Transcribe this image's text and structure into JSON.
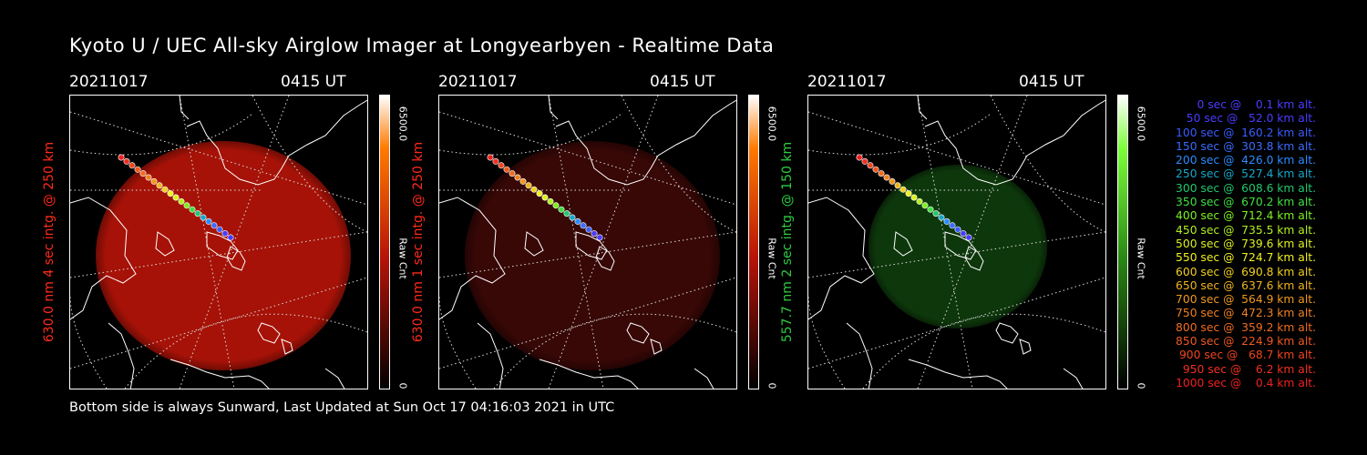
{
  "title": "Kyoto U / UEC All-sky Airglow Imager at Longyearbyen - Realtime Data",
  "footer": "Bottom side is always Sunward, Last Updated at Sun Oct 17 04:16:03 2021 in UTC",
  "panels": [
    {
      "date": "20211017",
      "time": "0415 UT",
      "ylabel": "630.0 nm 4 sec intg. @ 250 km",
      "ylabel_color": "#ff2a1a",
      "cbar_max": "6500.0",
      "cbar_min": "0",
      "cbar_unit": "Raw Cnt",
      "glow_color": "#b81408",
      "glow_opacity": 0.9,
      "cbar_top": "#ff7a00",
      "cbar_mid": "#b81408"
    },
    {
      "date": "20211017",
      "time": "0415 UT",
      "ylabel": "630.0 nm 1 sec intg. @ 250 km",
      "ylabel_color": "#ff2a1a",
      "cbar_max": "6500.0",
      "cbar_min": "0",
      "cbar_unit": "Raw Cnt",
      "glow_color": "#3a0806",
      "glow_opacity": 0.95,
      "cbar_top": "#ff7a00",
      "cbar_mid": "#b81408"
    },
    {
      "date": "20211017",
      "time": "0415 UT",
      "ylabel": "557.7 nm 2 sec intg. @ 150 km",
      "ylabel_color": "#2ecc40",
      "cbar_max": "6500.0",
      "cbar_min": "0",
      "cbar_unit": "Raw Cnt",
      "glow_color": "#0e3a0c",
      "glow_opacity": 0.95,
      "cbar_top": "#7cff3a",
      "cbar_mid": "#2a8a14"
    }
  ],
  "legend": [
    {
      "text": "   0 sec @    0.1 km alt.",
      "color": "#4a3cff"
    },
    {
      "text": "  50 sec @   52.0 km alt.",
      "color": "#4a3cff"
    },
    {
      "text": " 100 sec @  160.2 km alt.",
      "color": "#3a5cff"
    },
    {
      "text": " 150 sec @  303.8 km alt.",
      "color": "#3a6cff"
    },
    {
      "text": " 200 sec @  426.0 km alt.",
      "color": "#2a8cff"
    },
    {
      "text": " 250 sec @  527.4 km alt.",
      "color": "#18a8c8"
    },
    {
      "text": " 300 sec @  608.6 km alt.",
      "color": "#20c870"
    },
    {
      "text": " 350 sec @  670.2 km alt.",
      "color": "#40e040"
    },
    {
      "text": " 400 sec @  712.4 km alt.",
      "color": "#7cf020"
    },
    {
      "text": " 450 sec @  735.5 km alt.",
      "color": "#b4f020"
    },
    {
      "text": " 500 sec @  739.6 km alt.",
      "color": "#dcf020"
    },
    {
      "text": " 550 sec @  724.7 km alt.",
      "color": "#f0f020"
    },
    {
      "text": " 600 sec @  690.8 km alt.",
      "color": "#f0d020"
    },
    {
      "text": " 650 sec @  637.6 km alt.",
      "color": "#f0b420"
    },
    {
      "text": " 700 sec @  564.9 km alt.",
      "color": "#f09820"
    },
    {
      "text": " 750 sec @  472.3 km alt.",
      "color": "#f08020"
    },
    {
      "text": " 800 sec @  359.2 km alt.",
      "color": "#f06c20"
    },
    {
      "text": " 850 sec @  224.9 km alt.",
      "color": "#f05820"
    },
    {
      "text": " 900 sec @   68.7 km alt.",
      "color": "#f04420"
    },
    {
      "text": " 950 sec @    6.2 km alt.",
      "color": "#f03020"
    },
    {
      "text": "1000 sec @    0.4 km alt.",
      "color": "#f02020"
    }
  ]
}
